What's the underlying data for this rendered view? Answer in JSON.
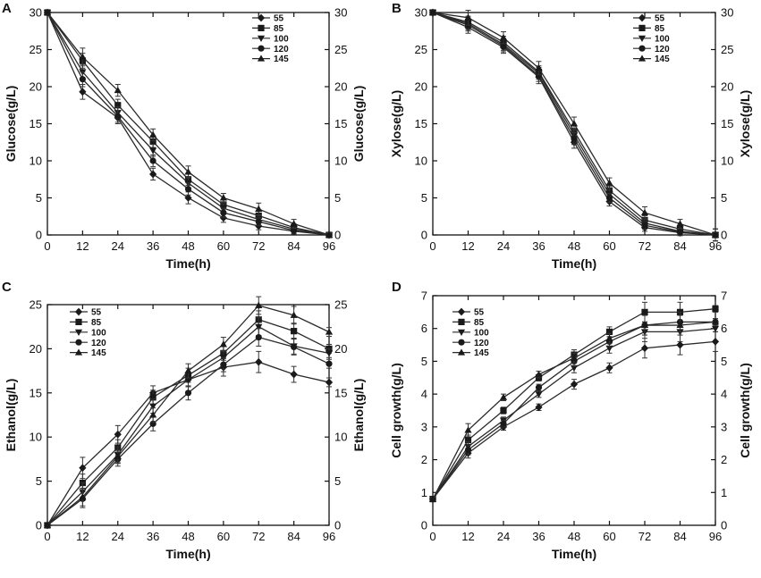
{
  "chart_data": [
    {
      "type": "line",
      "panel": "A",
      "xlabel": "Time(h)",
      "ylabel": "Glucose(g/L)",
      "ylabel_right": "Glucose(g/L)",
      "xlim": [
        0,
        96
      ],
      "ylim": [
        0,
        30
      ],
      "x_ticks": [
        0,
        12,
        24,
        36,
        48,
        60,
        72,
        84,
        96
      ],
      "y_ticks": [
        0,
        5,
        10,
        15,
        20,
        25,
        30
      ],
      "x": [
        0,
        12,
        24,
        36,
        48,
        60,
        72,
        84,
        96
      ],
      "series": [
        {
          "name": "55",
          "marker": "diamond",
          "values": [
            30,
            19.3,
            15.8,
            8.2,
            5.0,
            2.3,
            1.2,
            0.5,
            0
          ],
          "errors": [
            0,
            1.0,
            0.8,
            0.8,
            0.8,
            0.6,
            0.5,
            0.4,
            0.3
          ]
        },
        {
          "name": "85",
          "marker": "square",
          "values": [
            30,
            23.5,
            17.5,
            12.6,
            7.5,
            4.1,
            2.6,
            1.0,
            0
          ],
          "errors": [
            0,
            1.0,
            0.8,
            0.8,
            0.8,
            0.6,
            0.6,
            0.5,
            0.3
          ]
        },
        {
          "name": "100",
          "marker": "triangle-down",
          "values": [
            30,
            22.0,
            16.5,
            11.4,
            7.0,
            3.6,
            2.1,
            0.8,
            0
          ],
          "errors": [
            0,
            1.0,
            0.8,
            0.8,
            0.8,
            0.6,
            0.5,
            0.4,
            0.3
          ]
        },
        {
          "name": "120",
          "marker": "circle",
          "values": [
            30,
            21.0,
            16.0,
            10.0,
            6.2,
            3.0,
            1.8,
            0.6,
            0
          ],
          "errors": [
            0,
            1.0,
            0.8,
            0.8,
            0.8,
            0.6,
            0.5,
            0.4,
            0.3
          ]
        },
        {
          "name": "145",
          "marker": "triangle-up",
          "values": [
            30,
            24.0,
            19.5,
            13.5,
            8.5,
            5.0,
            3.5,
            1.5,
            0
          ],
          "errors": [
            0,
            1.2,
            0.8,
            0.8,
            0.8,
            0.6,
            0.8,
            0.6,
            0.3
          ]
        }
      ]
    },
    {
      "type": "line",
      "panel": "B",
      "xlabel": "Time(h)",
      "ylabel": "Xylose(g/L)",
      "ylabel_right": "Xylose(g/L)",
      "xlim": [
        0,
        96
      ],
      "ylim": [
        0,
        30
      ],
      "x_ticks": [
        0,
        12,
        24,
        36,
        48,
        60,
        72,
        84,
        96
      ],
      "y_ticks": [
        0,
        5,
        10,
        15,
        20,
        25,
        30
      ],
      "x": [
        0,
        12,
        24,
        36,
        48,
        60,
        72,
        84,
        96
      ],
      "series": [
        {
          "name": "55",
          "marker": "diamond",
          "values": [
            30,
            28.0,
            25.3,
            21.3,
            12.5,
            4.5,
            1.0,
            0.3,
            0
          ],
          "errors": [
            0,
            0.8,
            0.8,
            0.9,
            0.8,
            0.6,
            0.5,
            0.4,
            0.8
          ]
        },
        {
          "name": "85",
          "marker": "square",
          "values": [
            30,
            28.7,
            26.0,
            22.0,
            14.0,
            6.0,
            2.0,
            0.8,
            0
          ],
          "errors": [
            0,
            0.8,
            0.8,
            0.8,
            0.8,
            0.6,
            0.6,
            0.5,
            0.8
          ]
        },
        {
          "name": "100",
          "marker": "triangle-down",
          "values": [
            30,
            28.5,
            25.7,
            21.8,
            13.5,
            5.5,
            1.6,
            0.5,
            0
          ],
          "errors": [
            0,
            0.8,
            0.8,
            0.8,
            0.8,
            0.6,
            0.5,
            0.4,
            0.8
          ]
        },
        {
          "name": "120",
          "marker": "circle",
          "values": [
            30,
            28.3,
            25.5,
            21.5,
            13.0,
            5.0,
            1.3,
            0.4,
            0
          ],
          "errors": [
            0,
            0.8,
            0.8,
            0.8,
            0.8,
            0.6,
            0.5,
            0.4,
            0.8
          ]
        },
        {
          "name": "145",
          "marker": "triangle-up",
          "values": [
            30,
            29.3,
            26.6,
            22.5,
            15.0,
            7.0,
            3.0,
            1.5,
            0
          ],
          "errors": [
            0,
            1.0,
            0.8,
            0.9,
            0.9,
            0.7,
            0.8,
            0.6,
            0.8
          ]
        }
      ]
    },
    {
      "type": "line",
      "panel": "C",
      "xlabel": "Time(h)",
      "ylabel": "Ethanol(g/L)",
      "ylabel_right": "Ethanol(g/L)",
      "xlim": [
        0,
        96
      ],
      "ylim": [
        0,
        25
      ],
      "x_ticks": [
        0,
        12,
        24,
        36,
        48,
        60,
        72,
        84,
        96
      ],
      "y_ticks": [
        0,
        5,
        10,
        15,
        20,
        25
      ],
      "x": [
        0,
        12,
        24,
        36,
        48,
        60,
        72,
        84,
        96
      ],
      "series": [
        {
          "name": "55",
          "marker": "diamond",
          "values": [
            0,
            6.5,
            10.3,
            15.0,
            16.5,
            17.9,
            18.5,
            17.1,
            16.2
          ],
          "errors": [
            0,
            1.2,
            1.0,
            0.8,
            0.8,
            1.0,
            1.2,
            0.9,
            0.5
          ]
        },
        {
          "name": "85",
          "marker": "square",
          "values": [
            0,
            4.8,
            8.8,
            14.5,
            17.0,
            19.5,
            23.3,
            22.0,
            20.0
          ],
          "errors": [
            0,
            1.0,
            0.9,
            0.8,
            0.8,
            0.8,
            1.0,
            0.9,
            0.5
          ]
        },
        {
          "name": "100",
          "marker": "triangle-down",
          "values": [
            0,
            3.8,
            8.0,
            13.5,
            16.5,
            19.0,
            22.5,
            20.3,
            19.5
          ],
          "errors": [
            0,
            1.0,
            0.9,
            0.8,
            0.8,
            0.8,
            1.0,
            0.9,
            0.5
          ]
        },
        {
          "name": "120",
          "marker": "circle",
          "values": [
            0,
            3.0,
            7.5,
            11.5,
            15.0,
            18.2,
            21.3,
            20.2,
            18.3
          ],
          "errors": [
            0,
            1.0,
            0.8,
            0.8,
            0.8,
            0.8,
            1.0,
            0.9,
            0.5
          ]
        },
        {
          "name": "145",
          "marker": "triangle-up",
          "values": [
            0,
            3.2,
            7.8,
            12.5,
            17.5,
            20.5,
            24.9,
            23.8,
            21.9
          ],
          "errors": [
            0,
            1.0,
            0.8,
            0.8,
            0.8,
            0.8,
            1.0,
            1.0,
            0.5
          ]
        }
      ]
    },
    {
      "type": "line",
      "panel": "D",
      "xlabel": "Time(h)",
      "ylabel": "Cell growth(g/L)",
      "ylabel_right": "Cell growth(g/L)",
      "xlim": [
        0,
        96
      ],
      "ylim": [
        0,
        7
      ],
      "x_ticks": [
        0,
        12,
        24,
        36,
        48,
        60,
        72,
        84,
        96
      ],
      "y_ticks": [
        0,
        1,
        2,
        3,
        4,
        5,
        6,
        7
      ],
      "x": [
        0,
        12,
        24,
        36,
        48,
        60,
        72,
        84,
        96
      ],
      "series": [
        {
          "name": "55",
          "marker": "diamond",
          "values": [
            0.8,
            2.2,
            3.0,
            3.6,
            4.3,
            4.8,
            5.4,
            5.5,
            5.6
          ],
          "errors": [
            0.05,
            0.15,
            0.1,
            0.1,
            0.15,
            0.15,
            0.3,
            0.3,
            0.3
          ]
        },
        {
          "name": "85",
          "marker": "square",
          "values": [
            0.8,
            2.6,
            3.5,
            4.5,
            5.2,
            5.9,
            6.5,
            6.5,
            6.6
          ],
          "errors": [
            0.05,
            0.15,
            0.1,
            0.1,
            0.15,
            0.15,
            0.3,
            0.3,
            0.1
          ]
        },
        {
          "name": "100",
          "marker": "triangle-down",
          "values": [
            0.8,
            2.4,
            3.2,
            4.0,
            4.8,
            5.4,
            5.9,
            5.9,
            6.0
          ],
          "errors": [
            0.05,
            0.15,
            0.1,
            0.1,
            0.15,
            0.15,
            0.3,
            0.3,
            0.1
          ]
        },
        {
          "name": "120",
          "marker": "circle",
          "values": [
            0.8,
            2.3,
            3.1,
            4.2,
            5.0,
            5.6,
            6.1,
            6.2,
            6.2
          ],
          "errors": [
            0.05,
            0.15,
            0.1,
            0.1,
            0.15,
            0.15,
            0.3,
            0.3,
            0.1
          ]
        },
        {
          "name": "145",
          "marker": "triangle-up",
          "values": [
            0.8,
            2.9,
            3.9,
            4.6,
            5.1,
            5.7,
            6.1,
            6.1,
            6.2
          ],
          "errors": [
            0.05,
            0.2,
            0.1,
            0.1,
            0.15,
            0.15,
            0.3,
            0.3,
            0.1
          ]
        }
      ]
    }
  ]
}
